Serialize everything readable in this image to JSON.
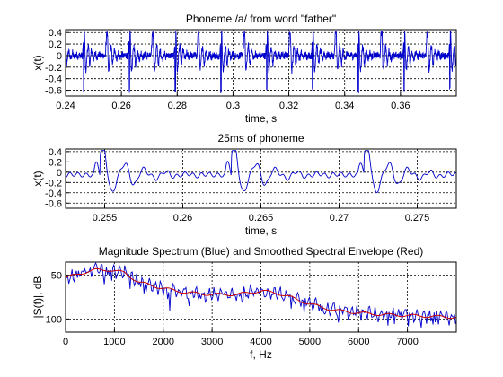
{
  "chart_data": [
    {
      "type": "line",
      "title": "Phoneme /a/ from word \"father\"",
      "xlabel": "time, s",
      "ylabel": "x(t)",
      "xlim": [
        0.24,
        0.38
      ],
      "ylim": [
        -0.7,
        0.45
      ],
      "xticks": [
        "0.24",
        "0.26",
        "0.28",
        "0.3",
        "0.32",
        "0.34",
        "0.36"
      ],
      "yticks": [
        "0.4",
        "0.2",
        "0",
        "-0.2",
        "-0.4",
        "-0.6"
      ],
      "grid": true,
      "series": [
        {
          "color": "#0000cc",
          "pitch_period_s": 0.0082,
          "first_peak_s": 0.2465,
          "peak": 0.4,
          "trough": -0.6
        }
      ]
    },
    {
      "type": "line",
      "title": "25ms of phoneme",
      "xlabel": "time, s",
      "ylabel": "x(t)",
      "xlim": [
        0.2525,
        0.2775
      ],
      "ylim": [
        -0.7,
        0.45
      ],
      "xticks": [
        "0.255",
        "0.26",
        "0.265",
        "0.27",
        "0.275"
      ],
      "yticks": [
        "0.4",
        "0.2",
        "0",
        "-0.2",
        "-0.4",
        "-0.6"
      ],
      "grid": true,
      "series": [
        {
          "color": "#0000cc",
          "pulse_times_s": [
            0.2547,
            0.2631,
            0.2716
          ],
          "peak": 0.4,
          "trough": -0.6
        }
      ]
    },
    {
      "type": "line",
      "title": "Magnitude Spectrum (Blue) and Smoothed Spectral Envelope (Red)",
      "xlabel": "f, Hz",
      "ylabel": "|S(f)|, dB",
      "xlim": [
        0,
        8000
      ],
      "ylim": [
        -115,
        -35
      ],
      "xticks": [
        "0",
        "1000",
        "2000",
        "3000",
        "4000",
        "5000",
        "6000",
        "7000"
      ],
      "yticks": [
        "-50",
        "-100"
      ],
      "grid": true,
      "series": [
        {
          "name": "Magnitude Spectrum",
          "color": "#0000cc"
        },
        {
          "name": "Smoothed Spectral Envelope",
          "color": "#cc0000",
          "x": [
            0,
            300,
            600,
            900,
            1200,
            1500,
            2000,
            2500,
            3000,
            3500,
            4000,
            4300,
            4600,
            5000,
            5500,
            6000,
            6500,
            7000,
            7500,
            8000
          ],
          "y": [
            -53,
            -48,
            -44,
            -44,
            -47,
            -58,
            -65,
            -70,
            -72,
            -72,
            -68,
            -70,
            -75,
            -83,
            -90,
            -93,
            -95,
            -96,
            -97,
            -98
          ]
        }
      ]
    }
  ]
}
